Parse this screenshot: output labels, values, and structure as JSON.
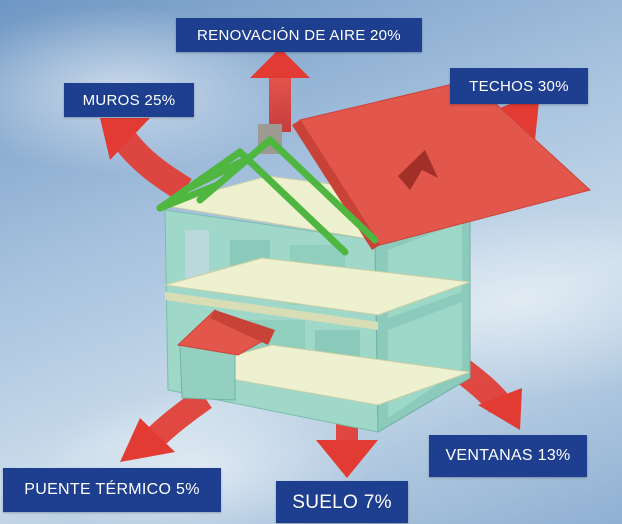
{
  "labels": {
    "renovacion": "RENOVACIÓN DE AIRE 20%",
    "muros": "MUROS 25%",
    "techos": "TECHOS 30%",
    "ventanas": "VENTANAS 13%",
    "puente": "PUENTE TÉRMICO 5%",
    "suelo": "SUELO 7%"
  },
  "colors": {
    "label_bg": "#1e3f8f",
    "arrow": "#e23b33",
    "roof": "#e2564b",
    "wall": "#9fd8c9",
    "floor": "#eef1cf",
    "rafter": "#4fb640"
  }
}
